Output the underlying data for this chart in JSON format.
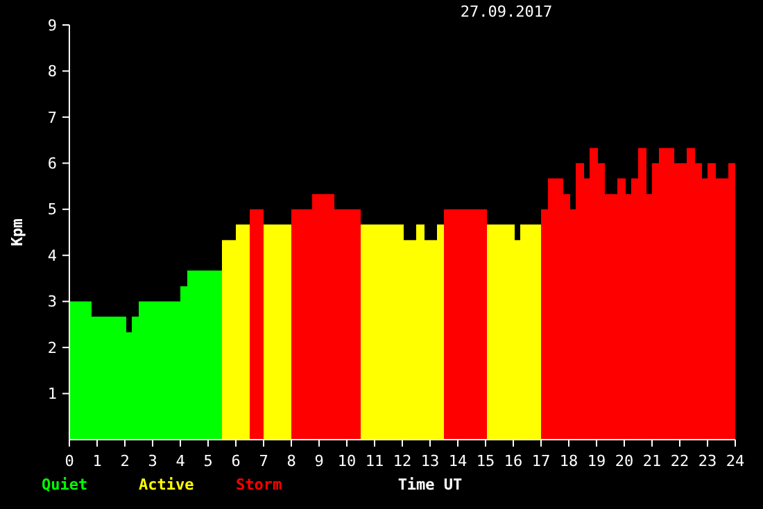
{
  "chart_data": {
    "type": "histogram",
    "title": "27.09.2017",
    "xlabel": "Time UT",
    "ylabel": "Kpm",
    "xlim": [
      0,
      24
    ],
    "ylim": [
      0,
      9
    ],
    "xticks": [
      0,
      1,
      2,
      3,
      4,
      5,
      6,
      7,
      8,
      9,
      10,
      11,
      12,
      13,
      14,
      15,
      16,
      17,
      18,
      19,
      20,
      21,
      22,
      23,
      24
    ],
    "yticks": [
      1,
      2,
      3,
      4,
      5,
      6,
      7,
      8,
      9
    ],
    "legend": "bottom left",
    "bins": [
      0,
      0.8,
      2.05,
      2.25,
      2.5,
      4.0,
      4.25,
      5.5,
      6.0,
      6.5,
      7.0,
      8.0,
      8.75,
      9.55,
      10.5,
      12.05,
      12.5,
      12.8,
      13.25,
      13.5,
      15.05,
      16.05,
      16.25,
      17.0,
      17.25,
      17.8,
      18.05,
      18.25,
      18.55,
      18.75,
      19.05,
      19.3,
      19.75,
      20.05,
      20.25,
      20.5,
      20.8,
      21.0,
      21.25,
      21.8,
      22.25,
      22.55,
      22.8,
      23.0,
      23.3,
      23.75,
      24
    ],
    "series": [
      {
        "name": "Quiet",
        "color": "#00ff00",
        "values": [
          3,
          2.67,
          2.33,
          2.67,
          3,
          3.33,
          3.67,
          null,
          null,
          null,
          null,
          null,
          null,
          null,
          null,
          null,
          null,
          null,
          null,
          null,
          null,
          null,
          null,
          null,
          null,
          null,
          null,
          null,
          null,
          null,
          null,
          null,
          null,
          null,
          null,
          null,
          null,
          null,
          null,
          null,
          null,
          null,
          null,
          null,
          null,
          null
        ]
      },
      {
        "name": "Active",
        "color": "#ffff00",
        "values": [
          null,
          null,
          null,
          null,
          null,
          null,
          null,
          4.33,
          4.67,
          null,
          4.67,
          null,
          null,
          null,
          4.67,
          4.33,
          4.67,
          4.33,
          4.67,
          null,
          4.67,
          4.33,
          4.67,
          null,
          null,
          null,
          null,
          null,
          null,
          null,
          null,
          null,
          null,
          null,
          null,
          null,
          null,
          null,
          null,
          null,
          null,
          null,
          null,
          null,
          null,
          null
        ]
      },
      {
        "name": "Storm",
        "color": "#ff0000",
        "values": [
          null,
          null,
          null,
          null,
          null,
          null,
          null,
          null,
          null,
          5,
          null,
          5,
          5.33,
          5,
          null,
          null,
          null,
          null,
          null,
          5,
          null,
          null,
          null,
          5,
          5.67,
          5.33,
          5,
          6,
          5.67,
          6.33,
          6,
          5.33,
          5.67,
          5.33,
          5.67,
          6.33,
          5.33,
          6,
          6.33,
          6,
          6.33,
          6,
          5.67,
          6,
          5.67,
          6
        ]
      }
    ]
  }
}
